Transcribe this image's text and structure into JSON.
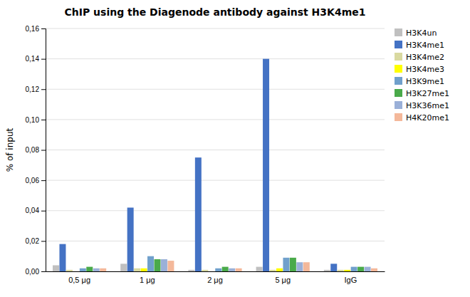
{
  "chart_data": {
    "type": "bar",
    "title": "ChIP using the Diagenode antibody against H3K4me1",
    "ylabel": "% of input",
    "categories": [
      "0,5 μg",
      "1 μg",
      "2 μg",
      "5 μg",
      "IgG"
    ],
    "series": [
      {
        "name": "H3K4un",
        "color": "#c0c0c0",
        "values": [
          0.004,
          0.005,
          0.001,
          0.003,
          0.001
        ]
      },
      {
        "name": "H3K4me1",
        "color": "#4472c4",
        "values": [
          0.018,
          0.042,
          0.075,
          0.14,
          0.005
        ]
      },
      {
        "name": "H3K4me2",
        "color": "#d9d9a0",
        "values": [
          0.001,
          0.002,
          0.001,
          0.001,
          0.001
        ]
      },
      {
        "name": "H3K4me3",
        "color": "#ffff00",
        "values": [
          0.0,
          0.002,
          0.0,
          0.002,
          0.001
        ]
      },
      {
        "name": "H3K9me1",
        "color": "#70a0cc",
        "values": [
          0.002,
          0.01,
          0.002,
          0.009,
          0.003
        ]
      },
      {
        "name": "H3K27me1",
        "color": "#4aaa4a",
        "values": [
          0.003,
          0.008,
          0.003,
          0.009,
          0.003
        ]
      },
      {
        "name": "H3K36me1",
        "color": "#9ab0d8",
        "values": [
          0.002,
          0.008,
          0.002,
          0.006,
          0.003
        ]
      },
      {
        "name": "H4K20me1",
        "color": "#f4b89a",
        "values": [
          0.002,
          0.007,
          0.002,
          0.006,
          0.002
        ]
      }
    ],
    "ylim": [
      0,
      0.16
    ],
    "yticks": [
      {
        "value": 0,
        "label": "0,00"
      },
      {
        "value": 0.02,
        "label": "0,02"
      },
      {
        "value": 0.04,
        "label": "0,04"
      },
      {
        "value": 0.06,
        "label": "0,06"
      },
      {
        "value": 0.08,
        "label": "0,08"
      },
      {
        "value": 0.1,
        "label": "0,10"
      },
      {
        "value": 0.12,
        "label": "0,12"
      },
      {
        "value": 0.14,
        "label": "0,14"
      },
      {
        "value": 0.16,
        "label": "0,16"
      }
    ],
    "grid": true,
    "legend": "upper right"
  }
}
